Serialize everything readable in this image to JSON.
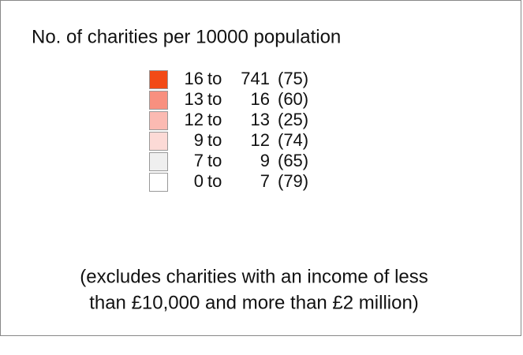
{
  "legend": {
    "title": "No. of charities per 10000 population",
    "items": [
      {
        "low": 16,
        "to": "to",
        "high": 741,
        "count": "(75)",
        "color": "#f24a16"
      },
      {
        "low": 13,
        "to": "to",
        "high": 16,
        "count": "(60)",
        "color": "#f8907f"
      },
      {
        "low": 12,
        "to": "to",
        "high": 13,
        "count": "(25)",
        "color": "#fbbab2"
      },
      {
        "low": 9,
        "to": "to",
        "high": 12,
        "count": "(74)",
        "color": "#fcdad6"
      },
      {
        "low": 7,
        "to": "to",
        "high": 9,
        "count": "(65)",
        "color": "#efefef"
      },
      {
        "low": 0,
        "to": "to",
        "high": 7,
        "count": "(79)",
        "color": "#ffffff"
      }
    ],
    "note": [
      "(excludes charities with an income of less",
      "than £10,000 and more than £2 million)"
    ]
  }
}
